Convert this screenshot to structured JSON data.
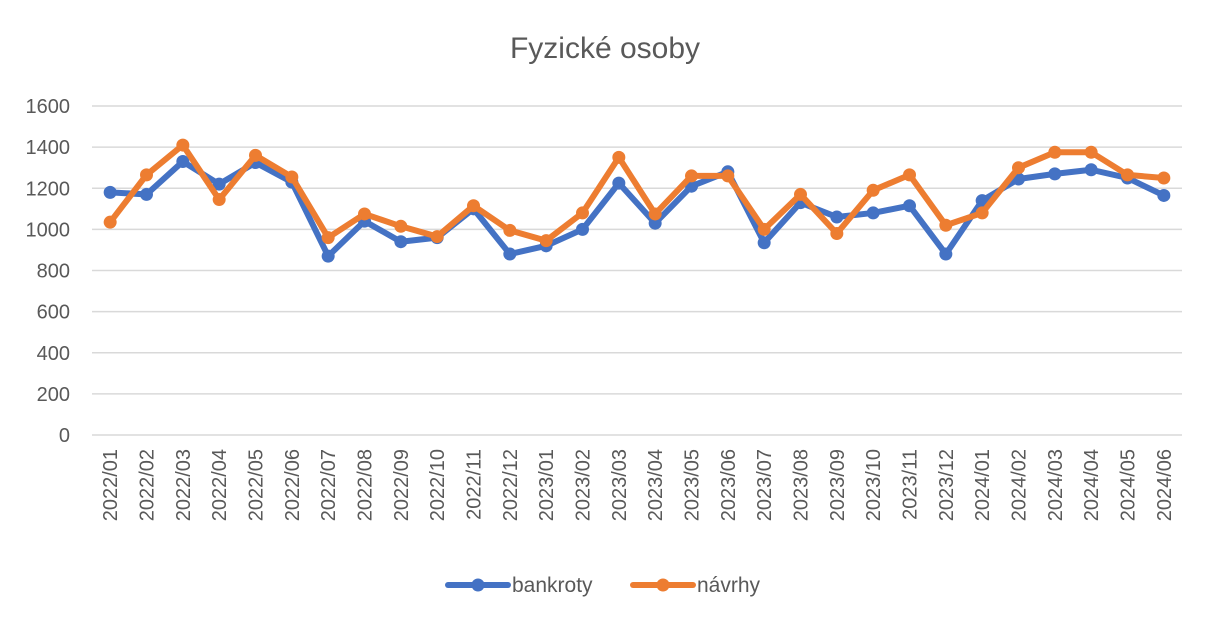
{
  "chart_data": {
    "type": "line",
    "title": "Fyzické osoby",
    "xlabel": "",
    "ylabel": "",
    "ylim": [
      0,
      1600
    ],
    "yticks": [
      0,
      200,
      400,
      600,
      800,
      1000,
      1200,
      1400,
      1600
    ],
    "grid": true,
    "legend_position": "bottom",
    "categories": [
      "2022/01",
      "2022/02",
      "2022/03",
      "2022/04",
      "2022/05",
      "2022/06",
      "2022/07",
      "2022/08",
      "2022/09",
      "2022/10",
      "2022/11",
      "2022/12",
      "2023/01",
      "2023/02",
      "2023/03",
      "2023/04",
      "2023/05",
      "2023/06",
      "2023/07",
      "2023/08",
      "2023/09",
      "2023/10",
      "2023/11",
      "2023/12",
      "2024/01",
      "2024/02",
      "2024/03",
      "2024/04",
      "2024/05",
      "2024/06"
    ],
    "series": [
      {
        "name": "bankroty",
        "color": "#4472C4",
        "values": [
          1180,
          1170,
          1330,
          1220,
          1325,
          1230,
          870,
          1040,
          940,
          960,
          1100,
          880,
          920,
          1000,
          1225,
          1030,
          1210,
          1280,
          935,
          1130,
          1060,
          1080,
          1115,
          880,
          1140,
          1245,
          1270,
          1290,
          1250,
          1165
        ]
      },
      {
        "name": "návrhy",
        "color": "#ED7D31",
        "values": [
          1035,
          1265,
          1410,
          1145,
          1360,
          1255,
          960,
          1075,
          1015,
          965,
          1115,
          995,
          945,
          1080,
          1350,
          1075,
          1260,
          1260,
          1000,
          1170,
          980,
          1190,
          1265,
          1020,
          1080,
          1300,
          1375,
          1375,
          1265,
          1250
        ]
      }
    ]
  }
}
